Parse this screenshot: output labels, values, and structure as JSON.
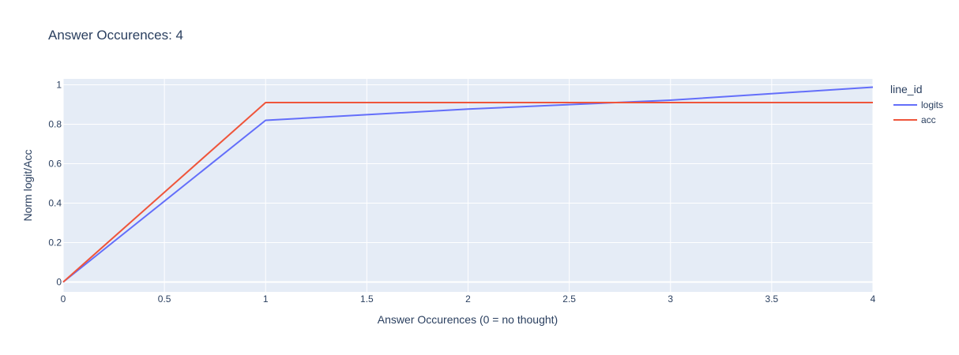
{
  "chart_data": {
    "type": "line",
    "title": "Answer Occurences: 4",
    "xlabel": "Answer Occurences (0 = no thought)",
    "ylabel": "Norm logit/Acc",
    "xlim": [
      0,
      4
    ],
    "ylim": [
      -0.05,
      1.03
    ],
    "xticks": [
      0,
      0.5,
      1,
      1.5,
      2,
      2.5,
      3,
      3.5,
      4
    ],
    "xtick_labels": [
      "0",
      "0.5",
      "1",
      "1.5",
      "2",
      "2.5",
      "3",
      "3.5",
      "4"
    ],
    "yticks": [
      0,
      0.2,
      0.4,
      0.6,
      0.8,
      1
    ],
    "ytick_labels": [
      "0",
      "0.2",
      "0.4",
      "0.6",
      "0.8",
      "1"
    ],
    "grid": true,
    "legend": {
      "title": "line_id",
      "position": "right"
    },
    "x": [
      0,
      1,
      2,
      3,
      4
    ],
    "series": [
      {
        "name": "logits",
        "color": "#636efa",
        "values": [
          0,
          0.82,
          0.877,
          0.922,
          0.988
        ]
      },
      {
        "name": "acc",
        "color": "#ef553b",
        "values": [
          0,
          0.91,
          0.91,
          0.91,
          0.91
        ]
      }
    ]
  },
  "colors": {
    "plot_background": "#e5ecf6",
    "grid": "#ffffff",
    "text": "#2a3f5f"
  }
}
